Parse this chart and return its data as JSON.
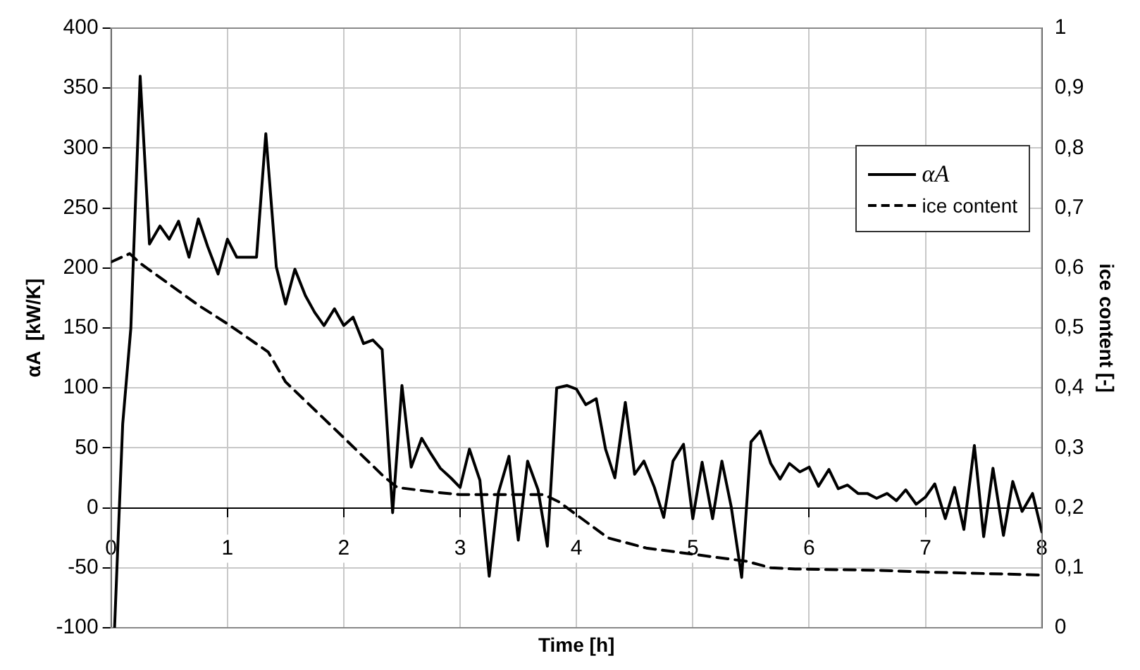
{
  "chart_data": {
    "type": "line",
    "xlabel": "Time [h]",
    "ylabel": "αA  [kW/K]",
    "y2label": "ice content [-]",
    "xlim": [
      0,
      8
    ],
    "xticks": [
      0,
      1,
      2,
      3,
      4,
      5,
      6,
      7,
      8
    ],
    "ylim": [
      -100,
      400
    ],
    "yticks": [
      -100,
      -50,
      0,
      50,
      100,
      150,
      200,
      250,
      300,
      350,
      400
    ],
    "y2lim": [
      0,
      1
    ],
    "y2ticks": [
      0,
      {
        "value": 0.1,
        "label": "0,1"
      },
      {
        "value": 0.2,
        "label": "0,2"
      },
      {
        "value": 0.3,
        "label": "0,3"
      },
      {
        "value": 0.4,
        "label": "0,4"
      },
      {
        "value": 0.5,
        "label": "0,5"
      },
      {
        "value": 0.6,
        "label": "0,6"
      },
      {
        "value": 0.7,
        "label": "0,7"
      },
      {
        "value": 0.8,
        "label": "0,8"
      },
      {
        "value": 0.9,
        "label": "0,9"
      },
      1
    ],
    "grid": true,
    "legend": "top right",
    "marker": "none",
    "series": [
      {
        "name": "αA",
        "color": "#000000",
        "line_style": "solid",
        "x": [
          0.03,
          0.1,
          0.17,
          0.25,
          0.33,
          0.42,
          0.5,
          0.58,
          0.67,
          0.75,
          0.83,
          0.92,
          1.0,
          1.08,
          1.17,
          1.25,
          1.33,
          1.42,
          1.5,
          1.58,
          1.67,
          1.75,
          1.83,
          1.92,
          2.0,
          2.08,
          2.17,
          2.25,
          2.33,
          2.42,
          2.5,
          2.58,
          2.67,
          2.75,
          2.83,
          2.92,
          3.0,
          3.08,
          3.17,
          3.25,
          3.33,
          3.42,
          3.5,
          3.58,
          3.67,
          3.75,
          3.83,
          3.92,
          4.0,
          4.08,
          4.17,
          4.25,
          4.33,
          4.42,
          4.5,
          4.58,
          4.67,
          4.75,
          4.83,
          4.92,
          5.0,
          5.08,
          5.17,
          5.25,
          5.33,
          5.42,
          5.5,
          5.58,
          5.67,
          5.75,
          5.83,
          5.92,
          6.0,
          6.08,
          6.17,
          6.25,
          6.33,
          6.42,
          6.5,
          6.58,
          6.67,
          6.75,
          6.83,
          6.92,
          7.0,
          7.08,
          7.17,
          7.25,
          7.33,
          7.42,
          7.5,
          7.58,
          7.67,
          7.75,
          7.83,
          7.92,
          8.0
        ],
        "values": [
          -100,
          70,
          150,
          360,
          220,
          235,
          224,
          239,
          209,
          241,
          218,
          195,
          224,
          209,
          209,
          209,
          312,
          201,
          170,
          199,
          177,
          163,
          152,
          166,
          152,
          159,
          137,
          140,
          132,
          -4,
          102,
          34,
          58,
          45,
          33,
          25,
          17,
          49,
          23,
          -57,
          13,
          43,
          -27,
          39,
          15,
          -32,
          100,
          102,
          99,
          86,
          91,
          49,
          25,
          88,
          28,
          39,
          17,
          -8,
          39,
          53,
          -9,
          38,
          -9,
          39,
          1,
          -58,
          55,
          64,
          37,
          24,
          37,
          30,
          34,
          18,
          32,
          16,
          19,
          12,
          12,
          8,
          12,
          6,
          15,
          3,
          9,
          20,
          -9,
          17,
          -18,
          52,
          -24,
          33,
          -23,
          22,
          -3,
          12,
          -20
        ]
      },
      {
        "name": "ice content",
        "color": "#000000",
        "line_style": "dashed",
        "axis": "y2",
        "x": [
          0,
          0.16,
          0.25,
          0.75,
          1.0,
          1.35,
          1.5,
          2.0,
          2.34,
          2.46,
          2.79,
          3.0,
          3.72,
          3.85,
          4.27,
          4.6,
          5.3,
          5.46,
          5.67,
          5.88,
          6.58,
          6.99,
          7.81,
          8.0
        ],
        "values": [
          0.61,
          0.624,
          0.608,
          0.538,
          0.507,
          0.46,
          0.41,
          0.317,
          0.253,
          0.234,
          0.226,
          0.222,
          0.222,
          0.21,
          0.15,
          0.133,
          0.115,
          0.111,
          0.1,
          0.098,
          0.096,
          0.093,
          0.089,
          0.088
        ]
      }
    ]
  }
}
